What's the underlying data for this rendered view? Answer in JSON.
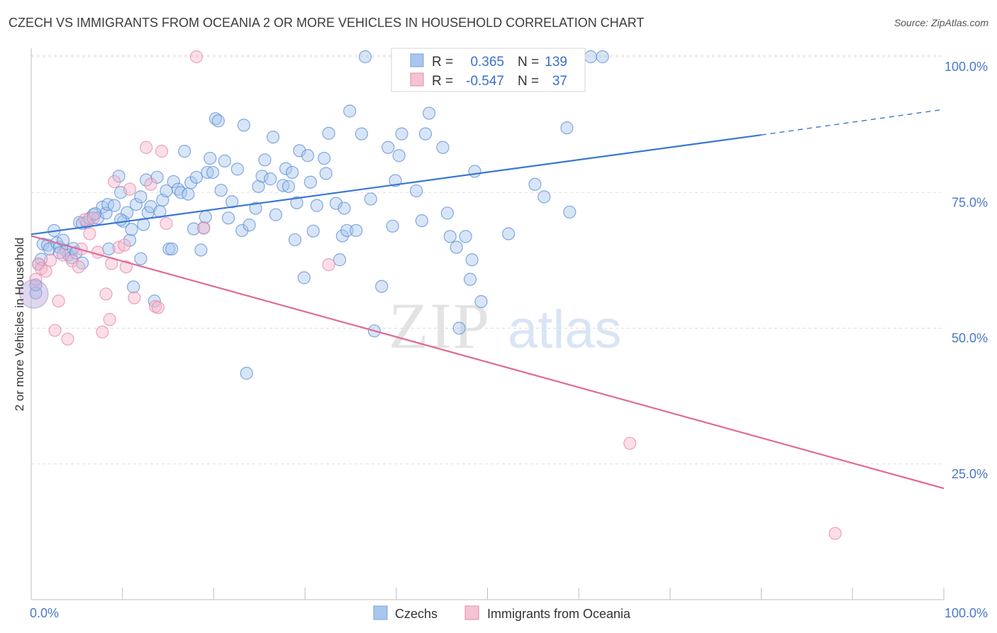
{
  "title": "CZECH VS IMMIGRANTS FROM OCEANIA 2 OR MORE VEHICLES IN HOUSEHOLD CORRELATION CHART",
  "source": "Source: ZipAtlas.com",
  "watermark": {
    "zip": "ZIP",
    "atlas": "atlas"
  },
  "colors": {
    "blue": "#3a78d0",
    "blue_fill": "#a9c6ee",
    "pink": "#e06a95",
    "pink_fill": "#f4b6cb",
    "grid": "#dddddd",
    "tick_text": "#4a78c8"
  },
  "stats": {
    "r_label": "R =",
    "n_label": "N =",
    "rows": [
      {
        "series": "Czechs",
        "r": "0.365",
        "n": "139"
      },
      {
        "series": "Immigrants from Oceania",
        "r": "-0.547",
        "n": "37"
      }
    ]
  },
  "chart_data": {
    "type": "scatter",
    "title": "CZECH VS IMMIGRANTS FROM OCEANIA 2 OR MORE VEHICLES IN HOUSEHOLD CORRELATION CHART",
    "xlabel": "",
    "ylabel": "2 or more Vehicles in Household",
    "xlim": [
      0,
      100
    ],
    "ylim": [
      0,
      105
    ],
    "x_tick_labels": [
      "0.0%",
      "100.0%"
    ],
    "y_ticks": [
      25,
      50,
      75,
      100
    ],
    "y_tick_labels": [
      "25.0%",
      "50.0%",
      "75.0%",
      "100.0%"
    ],
    "grid": true,
    "legend_position": "bottom-center",
    "series": [
      {
        "name": "Czechs",
        "color": "#3a78d0",
        "trend": {
          "x0": 0,
          "y0": 67.3,
          "x1": 80,
          "y1": 85.6,
          "dashed_to_x": 100,
          "dashed_to_y": 90.3
        },
        "points": [
          [
            0.5,
            56.5
          ],
          [
            0.5,
            58.0
          ],
          [
            0.8,
            61.8
          ],
          [
            1.1,
            62.7
          ],
          [
            1.3,
            65.5
          ],
          [
            1.8,
            65.3
          ],
          [
            2.0,
            64.6
          ],
          [
            2.5,
            68.0
          ],
          [
            2.8,
            65.7
          ],
          [
            3.1,
            64.9
          ],
          [
            3.5,
            66.2
          ],
          [
            3.8,
            64.3
          ],
          [
            4.1,
            63.5
          ],
          [
            4.4,
            63.0
          ],
          [
            4.6,
            64.7
          ],
          [
            4.9,
            63.9
          ],
          [
            5.3,
            69.5
          ],
          [
            5.6,
            69.3
          ],
          [
            6.1,
            69.5
          ],
          [
            6.4,
            70.2
          ],
          [
            6.8,
            70.9
          ],
          [
            7.3,
            70.3
          ],
          [
            7.8,
            72.3
          ],
          [
            8.2,
            71.2
          ],
          [
            8.4,
            72.8
          ],
          [
            8.5,
            64.6
          ],
          [
            9.1,
            72.6
          ],
          [
            9.6,
            78.0
          ],
          [
            9.8,
            75.0
          ],
          [
            10.1,
            69.7
          ],
          [
            10.5,
            71.3
          ],
          [
            10.8,
            66.2
          ],
          [
            11.0,
            68.2
          ],
          [
            11.5,
            72.8
          ],
          [
            12.0,
            74.2
          ],
          [
            12.3,
            69.1
          ],
          [
            12.6,
            77.3
          ],
          [
            12.8,
            71.3
          ],
          [
            13.1,
            72.4
          ],
          [
            13.5,
            55.0
          ],
          [
            13.8,
            77.8
          ],
          [
            14.1,
            71.5
          ],
          [
            14.4,
            73.6
          ],
          [
            14.8,
            75.3
          ],
          [
            15.1,
            64.6
          ],
          [
            15.4,
            64.6
          ],
          [
            15.6,
            77.0
          ],
          [
            16.1,
            75.6
          ],
          [
            16.4,
            75.0
          ],
          [
            16.8,
            82.6
          ],
          [
            17.2,
            74.7
          ],
          [
            17.5,
            76.8
          ],
          [
            17.8,
            68.3
          ],
          [
            18.1,
            77.8
          ],
          [
            18.6,
            64.4
          ],
          [
            18.9,
            68.5
          ],
          [
            19.1,
            70.5
          ],
          [
            19.3,
            78.7
          ],
          [
            19.6,
            81.3
          ],
          [
            19.9,
            78.7
          ],
          [
            20.2,
            88.6
          ],
          [
            20.5,
            88.2
          ],
          [
            20.8,
            75.4
          ],
          [
            21.2,
            80.8
          ],
          [
            21.6,
            70.3
          ],
          [
            22.0,
            73.3
          ],
          [
            22.6,
            79.3
          ],
          [
            23.1,
            68.0
          ],
          [
            23.3,
            87.4
          ],
          [
            23.6,
            41.7
          ],
          [
            23.9,
            69.0
          ],
          [
            24.6,
            72.1
          ],
          [
            24.9,
            76.1
          ],
          [
            25.3,
            78.0
          ],
          [
            25.6,
            81.0
          ],
          [
            26.2,
            77.5
          ],
          [
            26.5,
            85.2
          ],
          [
            26.8,
            70.9
          ],
          [
            27.6,
            76.3
          ],
          [
            27.9,
            79.4
          ],
          [
            28.2,
            76.1
          ],
          [
            28.6,
            78.7
          ],
          [
            28.9,
            66.3
          ],
          [
            29.1,
            73.1
          ],
          [
            29.4,
            82.7
          ],
          [
            29.9,
            59.3
          ],
          [
            30.3,
            81.8
          ],
          [
            30.6,
            76.9
          ],
          [
            30.9,
            67.9
          ],
          [
            31.3,
            72.6
          ],
          [
            32.1,
            81.3
          ],
          [
            32.3,
            78.5
          ],
          [
            32.6,
            85.9
          ],
          [
            33.4,
            73.0
          ],
          [
            33.8,
            62.6
          ],
          [
            34.1,
            67.0
          ],
          [
            34.3,
            72.1
          ],
          [
            34.6,
            68.0
          ],
          [
            34.9,
            90.0
          ],
          [
            35.6,
            68.0
          ],
          [
            36.2,
            85.8
          ],
          [
            36.6,
            100.0
          ],
          [
            37.2,
            73.8
          ],
          [
            37.6,
            49.5
          ],
          [
            38.4,
            57.7
          ],
          [
            39.1,
            83.3
          ],
          [
            39.6,
            68.8
          ],
          [
            39.9,
            77.2
          ],
          [
            40.3,
            81.8
          ],
          [
            40.6,
            85.8
          ],
          [
            41.2,
            100.0
          ],
          [
            42.2,
            75.3
          ],
          [
            42.8,
            69.8
          ],
          [
            43.2,
            85.8
          ],
          [
            43.6,
            89.6
          ],
          [
            45.1,
            83.3
          ],
          [
            45.6,
            71.2
          ],
          [
            45.9,
            66.9
          ],
          [
            46.6,
            64.9
          ],
          [
            46.9,
            50.0
          ],
          [
            47.6,
            66.9
          ],
          [
            48.3,
            62.6
          ],
          [
            48.1,
            59.0
          ],
          [
            48.6,
            78.9
          ],
          [
            49.3,
            54.9
          ],
          [
            52.3,
            67.4
          ],
          [
            55.2,
            76.5
          ],
          [
            56.2,
            74.2
          ],
          [
            58.7,
            86.9
          ],
          [
            59.0,
            71.4
          ],
          [
            61.3,
            100.0
          ],
          [
            62.6,
            100.0
          ],
          [
            11.2,
            57.6
          ],
          [
            7.0,
            71.1
          ],
          [
            3.1,
            63.9
          ],
          [
            40.5,
            100.0
          ],
          [
            9.8,
            70.0
          ],
          [
            12.0,
            62.8
          ],
          [
            5.6,
            62.0
          ]
        ]
      },
      {
        "name": "Immigrants from Oceania",
        "color": "#e06a95",
        "trend": {
          "x0": 0,
          "y0": 67.0,
          "x1": 100,
          "y1": 20.5
        },
        "points": [
          [
            0.5,
            59.0
          ],
          [
            0.8,
            61.8
          ],
          [
            1.1,
            61.0
          ],
          [
            1.6,
            60.5
          ],
          [
            2.1,
            62.5
          ],
          [
            2.6,
            49.6
          ],
          [
            3.0,
            55.0
          ],
          [
            3.5,
            63.5
          ],
          [
            4.0,
            48.0
          ],
          [
            4.5,
            62.4
          ],
          [
            5.2,
            61.3
          ],
          [
            5.5,
            64.6
          ],
          [
            5.9,
            70.0
          ],
          [
            6.4,
            67.4
          ],
          [
            6.8,
            70.3
          ],
          [
            7.3,
            64.0
          ],
          [
            7.8,
            49.3
          ],
          [
            8.2,
            56.3
          ],
          [
            8.6,
            51.6
          ],
          [
            8.8,
            61.9
          ],
          [
            9.1,
            77.0
          ],
          [
            9.6,
            64.9
          ],
          [
            10.2,
            65.3
          ],
          [
            10.4,
            61.3
          ],
          [
            10.8,
            75.6
          ],
          [
            11.3,
            55.6
          ],
          [
            12.6,
            83.3
          ],
          [
            13.1,
            76.5
          ],
          [
            13.6,
            54.0
          ],
          [
            13.9,
            53.8
          ],
          [
            14.3,
            82.6
          ],
          [
            14.8,
            69.3
          ],
          [
            18.1,
            100.0
          ],
          [
            18.9,
            68.4
          ],
          [
            32.6,
            61.7
          ],
          [
            65.6,
            28.8
          ],
          [
            88.1,
            12.2
          ]
        ]
      }
    ]
  }
}
